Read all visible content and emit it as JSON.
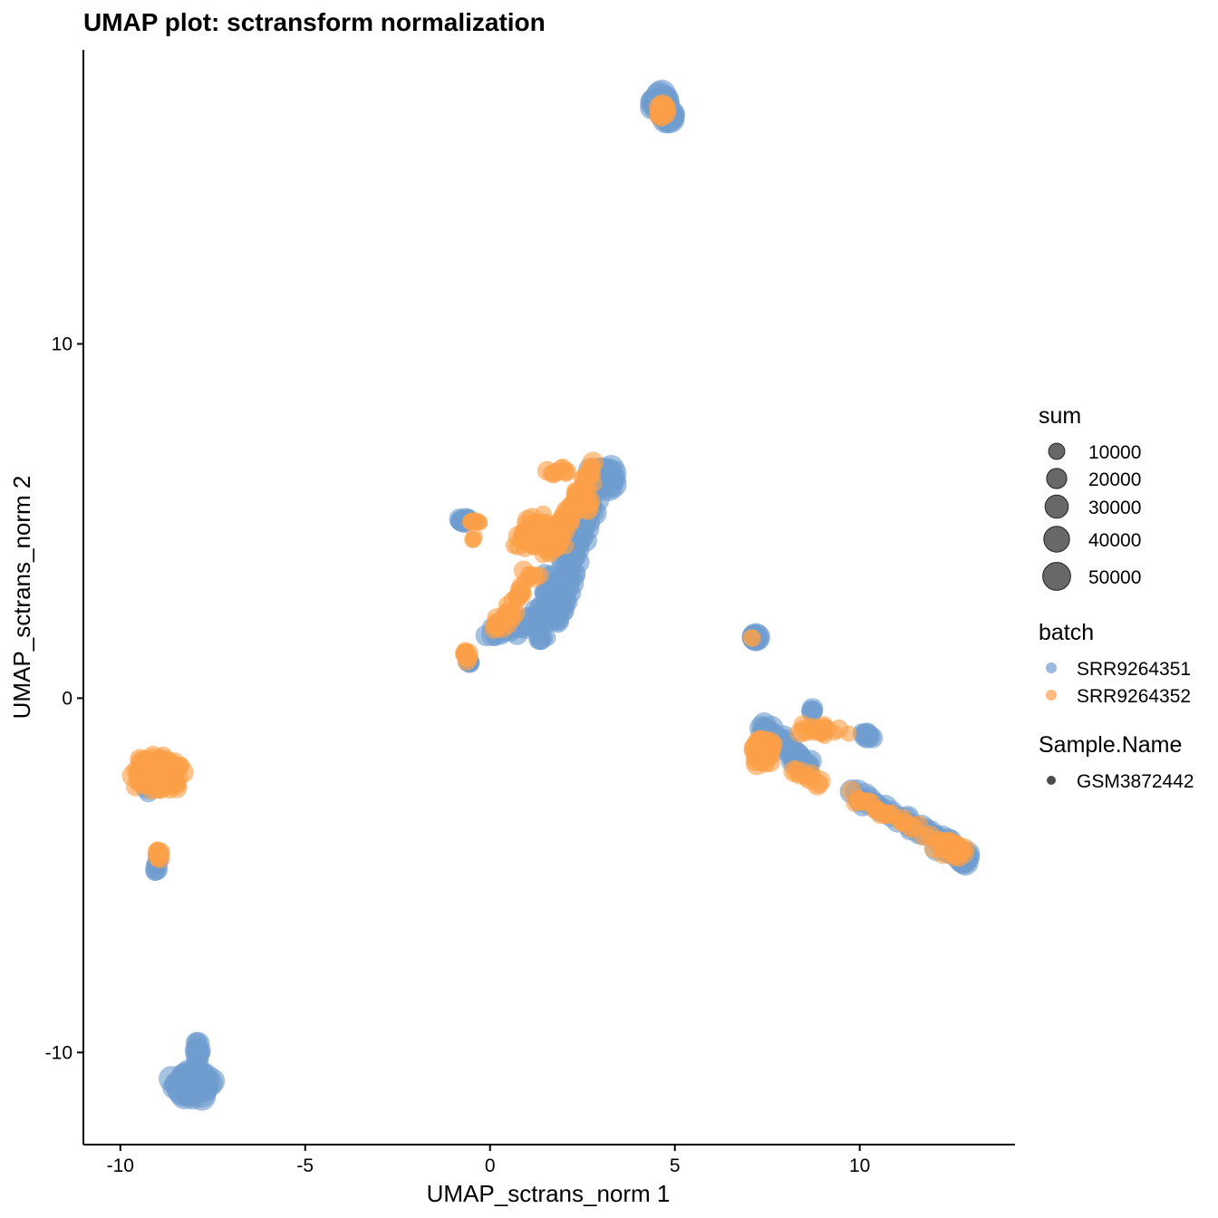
{
  "chart_data": {
    "type": "scatter",
    "title": "UMAP plot: sctransform normalization",
    "xlabel": "UMAP_sctrans_norm 1",
    "ylabel": "UMAP_sctrans_norm 2",
    "xlim": [
      -11,
      14.2
    ],
    "ylim": [
      -12.6,
      18.3
    ],
    "xticks": [
      "-10",
      "-5",
      "0",
      "5",
      "10"
    ],
    "xtick_values": [
      -10,
      -5,
      0,
      5,
      10
    ],
    "yticks": [
      "10",
      "0",
      "-10"
    ],
    "ytick_values": [
      10,
      0,
      -10
    ],
    "grid": false,
    "legend_placement": "right",
    "legend": {
      "size": {
        "title": "sum",
        "entries": [
          {
            "label": "10000",
            "value": 10000
          },
          {
            "label": "20000",
            "value": 20000
          },
          {
            "label": "30000",
            "value": 30000
          },
          {
            "label": "40000",
            "value": 40000
          },
          {
            "label": "50000",
            "value": 50000
          }
        ]
      },
      "color": {
        "title": "batch",
        "entries": [
          {
            "label": "SRR9264351",
            "color": "#6f9ccf"
          },
          {
            "label": "SRR9264352",
            "color": "#fc9f48"
          }
        ]
      },
      "shape": {
        "title": "Sample.Name",
        "entries": [
          {
            "label": "GSM3872442"
          }
        ]
      }
    },
    "series": [
      {
        "name": "SRR9264351",
        "color": "#6f9ccf",
        "clusters": [
          {
            "center": [
              4.6,
              16.8
            ],
            "spread": [
              0.15,
              0.18
            ],
            "n": 55,
            "sum": [
              20000,
              45000
            ]
          },
          {
            "center": [
              4.8,
              16.4
            ],
            "spread": [
              0.1,
              0.1
            ],
            "n": 20,
            "sum": [
              25000,
              45000
            ]
          },
          {
            "center": [
              -8.0,
              -10.9
            ],
            "spread": [
              0.28,
              0.22
            ],
            "n": 130,
            "sum": [
              25000,
              50000
            ]
          },
          {
            "center": [
              -7.9,
              -10.1
            ],
            "spread": [
              0.06,
              0.3
            ],
            "n": 15,
            "sum": [
              15000,
              30000
            ]
          },
          {
            "center": [
              -9.0,
              -4.7
            ],
            "spread": [
              0.08,
              0.2
            ],
            "n": 12,
            "sum": [
              10000,
              25000
            ]
          },
          {
            "center": [
              -9.3,
              -2.6
            ],
            "spread": [
              0.05,
              0.12
            ],
            "n": 4,
            "sum": [
              10000,
              20000
            ]
          },
          {
            "center": [
              7.2,
              1.7
            ],
            "spread": [
              0.04,
              0.04
            ],
            "n": 6,
            "sum": [
              30000,
              45000
            ]
          },
          {
            "center": [
              3.0,
              6.2
            ],
            "spread": [
              0.25,
              0.2
            ],
            "n": 45,
            "sum": [
              25000,
              50000
            ]
          },
          {
            "center": [
              -0.7,
              5.0
            ],
            "spread": [
              0.2,
              0.05
            ],
            "n": 18,
            "sum": [
              10000,
              25000
            ]
          },
          {
            "center": [
              -0.6,
              1.0
            ],
            "spread": [
              0.07,
              0.05
            ],
            "n": 6,
            "sum": [
              10000,
              20000
            ]
          }
        ],
        "trails": [
          {
            "from": [
              2.7,
              5.6
            ],
            "to": [
              1.7,
              2.3
            ],
            "spread": 0.17,
            "n": 110,
            "sum": [
              15000,
              40000
            ]
          },
          {
            "from": [
              1.9,
              2.5
            ],
            "to": [
              0.1,
              1.8
            ],
            "spread": 0.12,
            "n": 55,
            "sum": [
              10000,
              30000
            ]
          },
          {
            "from": [
              1.6,
              3.6
            ],
            "to": [
              1.4,
              1.4
            ],
            "spread": 0.12,
            "n": 35,
            "sum": [
              10000,
              25000
            ]
          },
          {
            "from": [
              7.3,
              -0.8
            ],
            "to": [
              8.7,
              -2.0
            ],
            "spread": 0.12,
            "n": 55,
            "sum": [
              15000,
              40000
            ]
          },
          {
            "from": [
              8.7,
              -0.4
            ],
            "to": [
              8.7,
              -0.3
            ],
            "spread": 0.05,
            "n": 4,
            "sum": [
              15000,
              25000
            ]
          },
          {
            "from": [
              10.0,
              -0.9
            ],
            "to": [
              10.3,
              -1.1
            ],
            "spread": 0.05,
            "n": 8,
            "sum": [
              15000,
              30000
            ]
          },
          {
            "from": [
              9.8,
              -2.7
            ],
            "to": [
              12.8,
              -4.3
            ],
            "spread": 0.1,
            "n": 70,
            "sum": [
              10000,
              35000
            ]
          },
          {
            "from": [
              12.2,
              -4.1
            ],
            "to": [
              12.9,
              -4.6
            ],
            "spread": 0.1,
            "n": 25,
            "sum": [
              20000,
              45000
            ]
          }
        ]
      },
      {
        "name": "SRR9264352",
        "color": "#fc9f48",
        "clusters": [
          {
            "center": [
              4.7,
              16.6
            ],
            "spread": [
              0.08,
              0.1
            ],
            "n": 25,
            "sum": [
              10000,
              30000
            ]
          },
          {
            "center": [
              -9.0,
              -2.1
            ],
            "spread": [
              0.38,
              0.28
            ],
            "n": 360,
            "sum": [
              10000,
              25000
            ]
          },
          {
            "center": [
              -8.95,
              -4.4
            ],
            "spread": [
              0.06,
              0.12
            ],
            "n": 12,
            "sum": [
              10000,
              20000
            ]
          },
          {
            "center": [
              -0.4,
              5.0
            ],
            "spread": [
              0.16,
              0.05
            ],
            "n": 14,
            "sum": [
              5000,
              15000
            ]
          },
          {
            "center": [
              -0.45,
              4.5
            ],
            "spread": [
              0.03,
              0.05
            ],
            "n": 3,
            "sum": [
              5000,
              15000
            ]
          },
          {
            "center": [
              1.3,
              4.6
            ],
            "spread": [
              0.38,
              0.3
            ],
            "n": 110,
            "sum": [
              10000,
              25000
            ]
          },
          {
            "center": [
              -0.6,
              1.2
            ],
            "spread": [
              0.07,
              0.12
            ],
            "n": 12,
            "sum": [
              10000,
              20000
            ]
          },
          {
            "center": [
              7.4,
              -1.5
            ],
            "spread": [
              0.2,
              0.3
            ],
            "n": 55,
            "sum": [
              10000,
              25000
            ]
          },
          {
            "center": [
              2.6,
              5.4
            ],
            "spread": [
              0.1,
              0.1
            ],
            "n": 5,
            "sum": [
              20000,
              35000
            ]
          },
          {
            "center": [
              7.1,
              1.7
            ],
            "spread": [
              0.02,
              0.02
            ],
            "n": 2,
            "sum": [
              10000,
              15000
            ]
          }
        ],
        "trails": [
          {
            "from": [
              2.8,
              6.5
            ],
            "to": [
              1.6,
              4.2
            ],
            "spread": 0.14,
            "n": 75,
            "sum": [
              10000,
              25000
            ]
          },
          {
            "from": [
              1.2,
              3.6
            ],
            "to": [
              0.1,
              1.8
            ],
            "spread": 0.14,
            "n": 45,
            "sum": [
              8000,
              20000
            ]
          },
          {
            "from": [
              1.6,
              6.4
            ],
            "to": [
              2.1,
              6.4
            ],
            "spread": 0.06,
            "n": 10,
            "sum": [
              10000,
              20000
            ]
          },
          {
            "from": [
              8.4,
              -0.9
            ],
            "to": [
              9.7,
              -0.9
            ],
            "spread": 0.12,
            "n": 22,
            "sum": [
              10000,
              20000
            ]
          },
          {
            "from": [
              8.2,
              -2.0
            ],
            "to": [
              9.0,
              -2.5
            ],
            "spread": 0.08,
            "n": 12,
            "sum": [
              10000,
              25000
            ]
          },
          {
            "from": [
              9.7,
              -2.7
            ],
            "to": [
              13.0,
              -4.4
            ],
            "spread": 0.09,
            "n": 45,
            "sum": [
              8000,
              22000
            ]
          },
          {
            "from": [
              12.0,
              -4.3
            ],
            "to": [
              12.7,
              -4.4
            ],
            "spread": 0.07,
            "n": 12,
            "sum": [
              10000,
              25000
            ]
          }
        ]
      }
    ]
  }
}
